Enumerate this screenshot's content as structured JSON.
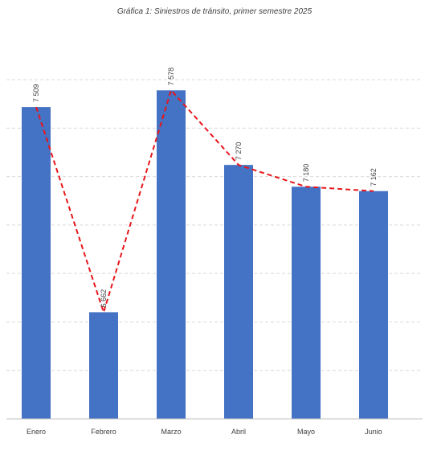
{
  "chart_data": {
    "type": "bar",
    "title": "Gráfica 1: Siniestros de tránsito, primer semestre 2025",
    "categories": [
      "Enero",
      "Febrero",
      "Marzo",
      "Abril",
      "Mayo",
      "Junio"
    ],
    "values": [
      7509,
      6662,
      7578,
      7270,
      7180,
      7162
    ],
    "value_labels": [
      "7 509",
      "6 662",
      "7 578",
      "7 270",
      "7 180",
      "7 162"
    ],
    "ylim": [
      6222,
      7818
    ],
    "grid": true,
    "trendline": {
      "style": "dashed",
      "color": "#e8161b"
    },
    "colors": {
      "bar": "#4472c4",
      "trend": "#e8161b"
    }
  }
}
